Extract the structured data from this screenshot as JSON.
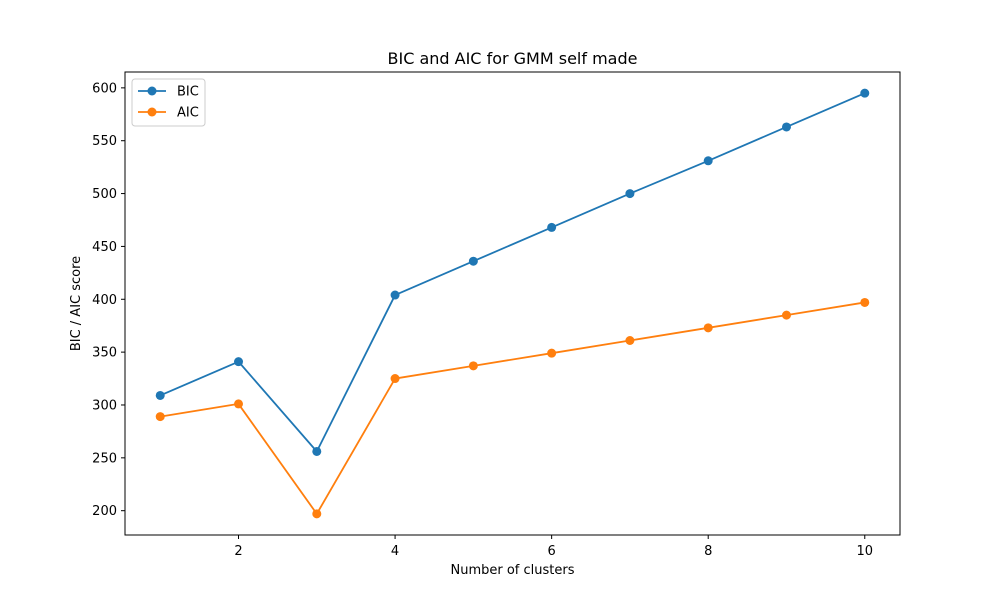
{
  "chart_data": {
    "type": "line",
    "title": "BIC and AIC for GMM self made",
    "xlabel": "Number of clusters",
    "ylabel": "BIC / AIC score",
    "x": [
      1,
      2,
      3,
      4,
      5,
      6,
      7,
      8,
      9,
      10
    ],
    "xlim": [
      0.55,
      10.45
    ],
    "ylim": [
      177,
      615
    ],
    "xticks": [
      2,
      4,
      6,
      8,
      10
    ],
    "yticks": [
      200,
      250,
      300,
      350,
      400,
      450,
      500,
      550,
      600
    ],
    "grid": false,
    "legend_position": "top-left",
    "series": [
      {
        "name": "BIC",
        "color": "#1f77b4",
        "marker": "circle",
        "values": [
          309,
          341,
          256,
          404,
          436,
          468,
          500,
          531,
          563,
          595
        ]
      },
      {
        "name": "AIC",
        "color": "#ff7f0e",
        "marker": "circle",
        "values": [
          289,
          301,
          197,
          325,
          337,
          349,
          361,
          373,
          385,
          397
        ]
      }
    ]
  }
}
